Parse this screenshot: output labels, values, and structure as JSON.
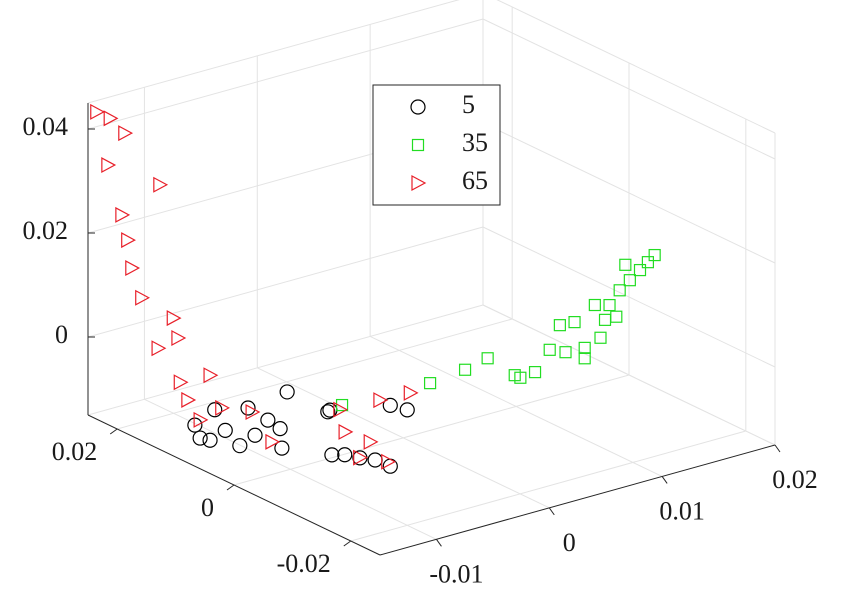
{
  "chart_data": {
    "type": "scatter3d",
    "xlim": [
      -0.015,
      0.02
    ],
    "ylim": [
      -0.025,
      0.025
    ],
    "zlim": [
      -0.015,
      0.045
    ],
    "xticks": [
      -0.01,
      0,
      0.01,
      0.02
    ],
    "yticks": [
      -0.02,
      0,
      0.02
    ],
    "zticks": [
      0,
      0.02,
      0.04
    ],
    "grid": true,
    "legend": "north",
    "series": [
      {
        "name": "5",
        "color": "#000000",
        "marker": "circle",
        "x": [
          -0.015,
          -0.015,
          -0.015,
          -0.015,
          -0.015,
          -0.015,
          -0.015,
          -0.015,
          -0.015,
          -0.015,
          -0.015,
          -0.015,
          -0.005,
          -0.01,
          -0.01,
          -0.01,
          -0.01,
          -0.01,
          -0.01,
          -0.01,
          -0.01
        ],
        "y": [
          0.0067,
          0.0041,
          0.0015,
          -0.001,
          -0.0036,
          0.0033,
          -0.0058,
          -0.0091,
          -0.0079,
          -0.0024,
          -0.0082,
          0.0058,
          0.0029,
          -0.0093,
          -0.0119,
          -0.0145,
          -0.0171,
          -0.0071,
          -0.0171,
          -0.02,
          -0.0064
        ],
        "z": [
          -0.0071,
          -0.0086,
          -0.0053,
          -0.0069,
          -0.0035,
          -0.0023,
          0.0006,
          0.0078,
          0.0001,
          0.0011,
          -0.0035,
          -0.0091,
          -0.0082,
          -0.0072,
          -0.0064,
          -0.0054,
          -0.0052,
          -0.0084,
          0.0065,
          0.0072,
          -0.0005
        ]
      },
      {
        "name": "35",
        "color": "#22dd22",
        "marker": "square",
        "x": [
          -0.0028,
          0.0003,
          0.0023,
          0.0047,
          0.0065,
          0.0087,
          0.0092,
          0.01,
          0.0109,
          0.0123,
          0.0127,
          0.0131,
          0.0118,
          0.014,
          0.0149,
          0.0158,
          0.0165,
          0.0171,
          0.0109,
          0.0078,
          0.0052,
          -0.0106,
          0.0145,
          0.0137
        ],
        "y": [
          -0.01,
          -0.01,
          -0.01,
          -0.01,
          -0.01,
          -0.01,
          -0.01,
          -0.01,
          -0.01,
          -0.01,
          -0.01,
          -0.01,
          -0.01,
          -0.01,
          -0.01,
          -0.01,
          -0.01,
          -0.01,
          -0.01,
          -0.01,
          -0.01,
          -0.01,
          -0.01,
          -0.01
        ],
        "z": [
          0.0026,
          0.0033,
          0.0043,
          -0.0004,
          -0.0009,
          0.0068,
          0.0013,
          0.0066,
          0.0011,
          0.0022,
          0.0054,
          0.008,
          0.0088,
          0.0103,
          0.0117,
          0.0131,
          0.0142,
          0.0152,
          -0.0009,
          0.0026,
          -0.0012,
          0.0031,
          0.0149,
          0.0054
        ]
      },
      {
        "name": "65",
        "color": "#e8202a",
        "marker": "triangle-right",
        "x": [
          -0.015,
          -0.015,
          -0.015,
          -0.015,
          -0.015,
          -0.015,
          -0.015,
          -0.015,
          -0.015,
          -0.015,
          -0.015,
          -0.015,
          -0.015,
          -0.015,
          -0.015,
          -0.015,
          -0.015,
          -0.015,
          -0.015,
          0,
          0,
          -0.005,
          -0.005,
          -0.005,
          -0.005,
          -0.005
        ],
        "y": [
          0.0235,
          0.0212,
          0.0187,
          0.0216,
          0.0127,
          0.0192,
          0.0182,
          0.0175,
          0.0158,
          0.0104,
          0.013,
          0.0096,
          0.0092,
          0.0041,
          0.0079,
          0.0021,
          -0.0031,
          -0.0065,
          0.0058,
          0.004,
          -0.0012,
          0.0003,
          -0.004,
          -0.007,
          -0.0022,
          0.0012
        ],
        "z": [
          0.0441,
          0.0441,
          0.0426,
          0.0349,
          0.0359,
          0.0266,
          0.0223,
          0.0173,
          0.0125,
          0.0115,
          0.0043,
          0.0081,
          -0.0002,
          0.0039,
          -0.0029,
          -0.0013,
          0.0007,
          -0.0032,
          -0.0056,
          -0.0099,
          -0.0057,
          -0.011,
          -0.0106,
          -0.0128,
          -0.0146,
          -0.0072
        ]
      }
    ]
  }
}
